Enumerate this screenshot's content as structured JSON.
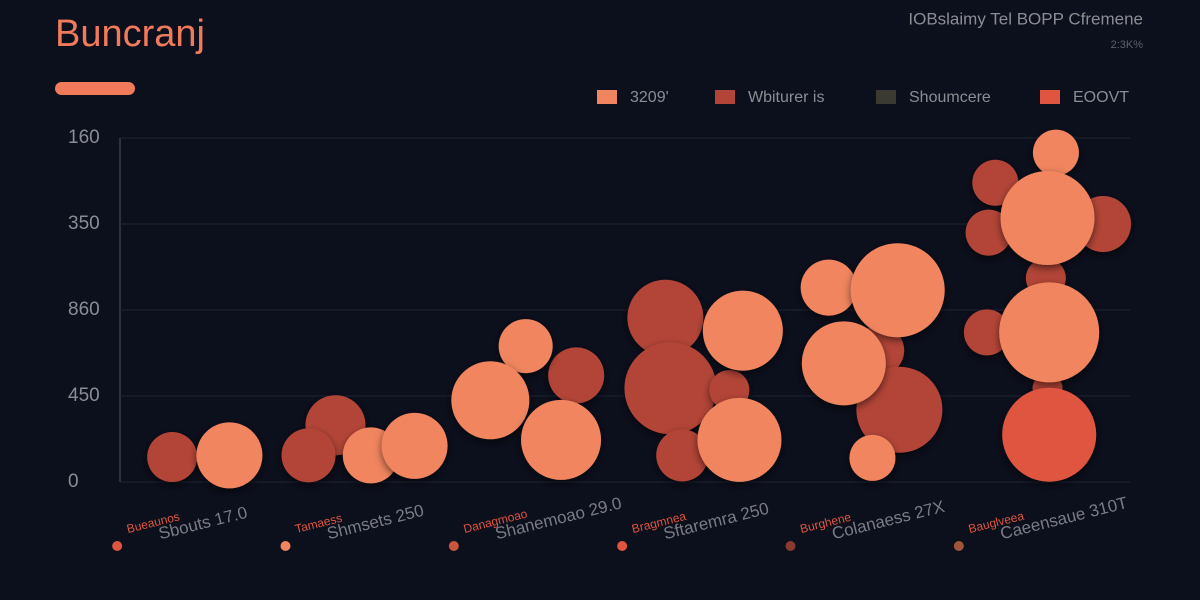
{
  "chart_data": {
    "type": "bubble",
    "title": "Buncranj",
    "subtitle": "IOBslaimy Tel BOPP Cfremene",
    "note": "2:3K%",
    "xlim": [
      0,
      6
    ],
    "ylim": [
      0,
      4
    ],
    "yticks": [
      {
        "value": 0,
        "label": "0"
      },
      {
        "value": 1,
        "label": "450"
      },
      {
        "value": 2,
        "label": "860"
      },
      {
        "value": 3,
        "label": "350"
      },
      {
        "value": 4,
        "label": "160"
      }
    ],
    "grid": true,
    "categories": [
      "Bueaunos",
      "Tamaess",
      "Danagmoao",
      "Bragmnea",
      "Burghene",
      "Bauglveea"
    ],
    "category_notes": [
      "Sbouts 17.0",
      "Shmsets 250",
      "Shanemoao 29.0",
      "Sftaremra 250",
      "Colanaess 27X",
      "Caeensaue 310T"
    ],
    "category_colors": [
      "#e0553f",
      "#f0855f",
      "#c9553f",
      "#e0553f",
      "#8a3a30",
      "#a0553a"
    ],
    "series": [
      {
        "name": "Wbiturer is",
        "color": "#b34538",
        "x": [
          0.31,
          1.28,
          1.12,
          2.71,
          3.24,
          3.27,
          3.62,
          3.34,
          4.51,
          4.63,
          5.2,
          5.84,
          5.16,
          5.5,
          5.15,
          5.51
        ],
        "values": [
          0.29,
          0.66,
          0.31,
          1.24,
          1.91,
          1.09,
          1.07,
          0.31,
          1.53,
          0.84,
          3.48,
          3.0,
          2.9,
          2.37,
          1.74,
          1.09
        ],
        "sizes": [
          25,
          30,
          27,
          28,
          38,
          46,
          20,
          26,
          25,
          43,
          23,
          28,
          23,
          20,
          23,
          15
        ]
      },
      {
        "name": "3209'",
        "color": "#f0855f",
        "x": [
          0.65,
          1.49,
          1.75,
          2.41,
          2.2,
          2.62,
          3.7,
          3.68,
          4.21,
          4.62,
          4.3,
          4.47,
          5.56,
          5.51,
          5.52
        ],
        "values": [
          0.31,
          0.31,
          0.42,
          1.58,
          0.95,
          0.49,
          1.76,
          0.49,
          2.26,
          2.23,
          1.38,
          0.28,
          3.83,
          3.07,
          1.74
        ],
        "sizes": [
          33,
          28,
          33,
          27,
          39,
          40,
          40,
          42,
          28,
          47,
          42,
          23,
          23,
          47,
          50
        ]
      },
      {
        "name": "Shoumcere",
        "color": "#3a3a33",
        "x": [],
        "values": [],
        "sizes": []
      },
      {
        "name": "EOOVT",
        "color": "#e05540",
        "x": [
          5.52
        ],
        "values": [
          0.55
        ],
        "sizes": [
          47
        ]
      }
    ]
  }
}
